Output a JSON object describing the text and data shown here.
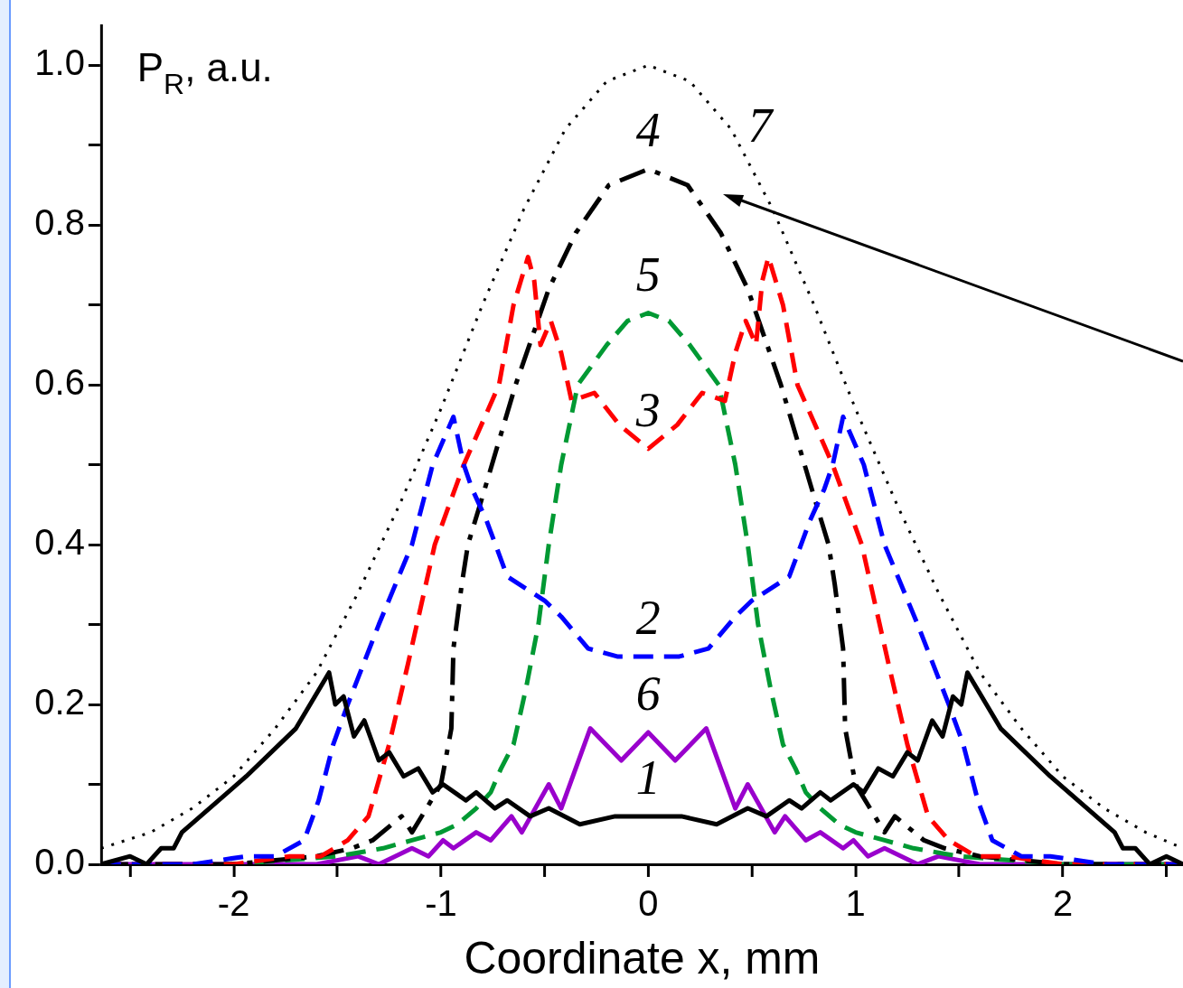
{
  "chart_data": {
    "type": "line",
    "xlabel": "Coordinate x, mm",
    "ylabel": "P$_{R}$, a.u.",
    "marker": "none",
    "xlim": [
      -2.64,
      2.58
    ],
    "ylim": [
      0,
      1.05
    ],
    "xticks": [
      {
        "value": -2.5,
        "label": null
      },
      -2,
      {
        "value": -1.5,
        "label": null
      },
      -1,
      {
        "value": -0.5,
        "label": null
      },
      0,
      {
        "value": 0.5,
        "label": null
      },
      1,
      {
        "value": 1.5,
        "label": null
      },
      2,
      {
        "value": 2.5,
        "label": null
      }
    ],
    "yticks": [
      {
        "value": 0,
        "label": "0.0"
      },
      {
        "value": 0.1,
        "label": null
      },
      0.2,
      {
        "value": 0.3,
        "label": null
      },
      0.4,
      {
        "value": 0.5,
        "label": null
      },
      0.6,
      {
        "value": 0.7,
        "label": null
      },
      0.8,
      {
        "value": 0.9,
        "label": null
      },
      {
        "value": 1,
        "label": "1.0"
      }
    ],
    "series": [
      {
        "name": "1",
        "color": "#000000",
        "line_style": "solid",
        "x": [
          -2.64,
          -2.5,
          -2.42,
          -2.35,
          -2.29,
          -2.25,
          -1.94,
          -1.7,
          -1.54,
          -1.51,
          -1.47,
          -1.42,
          -1.37,
          -1.3,
          -1.25,
          -1.18,
          -1.11,
          -1.04,
          -0.99,
          -0.88,
          -0.83,
          -0.74,
          -0.68,
          -0.57,
          -0.48,
          -0.33,
          -0.16,
          0,
          0.16,
          0.33,
          0.48,
          0.57,
          0.68,
          0.74,
          0.83,
          0.88,
          0.99,
          1.04,
          1.11,
          1.18,
          1.25,
          1.3,
          1.37,
          1.42,
          1.47,
          1.51,
          1.54,
          1.7,
          1.94,
          2.25,
          2.29,
          2.35,
          2.42,
          2.5,
          2.58
        ],
        "values": [
          0,
          0.01,
          0,
          0.02,
          0.02,
          0.04,
          0.11,
          0.17,
          0.24,
          0.2,
          0.21,
          0.16,
          0.18,
          0.13,
          0.14,
          0.11,
          0.12,
          0.09,
          0.1,
          0.08,
          0.09,
          0.07,
          0.08,
          0.06,
          0.07,
          0.05,
          0.06,
          0.06,
          0.06,
          0.05,
          0.07,
          0.06,
          0.08,
          0.07,
          0.09,
          0.08,
          0.1,
          0.09,
          0.12,
          0.11,
          0.14,
          0.13,
          0.18,
          0.16,
          0.21,
          0.2,
          0.24,
          0.17,
          0.11,
          0.04,
          0.02,
          0.02,
          0,
          0.01,
          0
        ]
      },
      {
        "name": "2",
        "color": "#0000ff",
        "line_style": "dashed",
        "x": [
          -2.64,
          -2.2,
          -1.94,
          -1.8,
          -1.66,
          -1.59,
          -1.52,
          -1.45,
          -1.3,
          -1.14,
          -1.04,
          -0.94,
          -0.89,
          -0.85,
          -0.78,
          -0.68,
          -0.5,
          -0.42,
          -0.29,
          -0.15,
          0,
          0.15,
          0.29,
          0.42,
          0.5,
          0.68,
          0.78,
          0.85,
          0.89,
          0.94,
          1.04,
          1.14,
          1.3,
          1.45,
          1.52,
          1.59,
          1.66,
          1.8,
          1.94,
          2.2,
          2.58
        ],
        "values": [
          0,
          0,
          0.01,
          0.01,
          0.03,
          0.08,
          0.15,
          0.2,
          0.3,
          0.4,
          0.5,
          0.56,
          0.5,
          0.47,
          0.43,
          0.36,
          0.33,
          0.31,
          0.27,
          0.26,
          0.26,
          0.26,
          0.27,
          0.31,
          0.33,
          0.36,
          0.43,
          0.47,
          0.5,
          0.56,
          0.5,
          0.4,
          0.3,
          0.2,
          0.15,
          0.08,
          0.03,
          0.01,
          0.01,
          0,
          0
        ]
      },
      {
        "name": "3",
        "color": "#ff0000",
        "line_style": "dashed",
        "x": [
          -2.64,
          -2.0,
          -1.73,
          -1.58,
          -1.45,
          -1.35,
          -1.25,
          -1.16,
          -1.03,
          -0.89,
          -0.72,
          -0.65,
          -0.58,
          -0.55,
          -0.52,
          -0.47,
          -0.42,
          -0.37,
          -0.26,
          -0.14,
          0,
          0.14,
          0.26,
          0.37,
          0.42,
          0.47,
          0.52,
          0.55,
          0.58,
          0.65,
          0.72,
          0.89,
          1.03,
          1.16,
          1.25,
          1.35,
          1.45,
          1.58,
          1.73,
          2.0,
          2.58
        ],
        "values": [
          0,
          0,
          0.01,
          0.01,
          0.03,
          0.06,
          0.15,
          0.25,
          0.4,
          0.5,
          0.6,
          0.7,
          0.76,
          0.73,
          0.65,
          0.68,
          0.64,
          0.58,
          0.59,
          0.55,
          0.52,
          0.55,
          0.59,
          0.58,
          0.64,
          0.68,
          0.65,
          0.73,
          0.76,
          0.7,
          0.6,
          0.5,
          0.4,
          0.25,
          0.15,
          0.06,
          0.03,
          0.01,
          0.01,
          0,
          0
        ]
      },
      {
        "name": "4",
        "color": "#000000",
        "line_style": "dashdot",
        "x": [
          -2.64,
          -2.0,
          -1.6,
          -1.43,
          -1.33,
          -1.19,
          -1.14,
          -1.0,
          -0.95,
          -0.94,
          -0.9,
          -0.87,
          -0.8,
          -0.72,
          -0.64,
          -0.48,
          -0.35,
          -0.19,
          0,
          0.19,
          0.35,
          0.48,
          0.64,
          0.72,
          0.8,
          0.87,
          0.9,
          0.94,
          0.95,
          1.0,
          1.14,
          1.19,
          1.33,
          1.43,
          1.6,
          2.0,
          2.58
        ],
        "values": [
          0,
          0,
          0.01,
          0.02,
          0.03,
          0.06,
          0.04,
          0.1,
          0.17,
          0.27,
          0.35,
          0.4,
          0.46,
          0.53,
          0.6,
          0.72,
          0.79,
          0.85,
          0.87,
          0.85,
          0.79,
          0.72,
          0.6,
          0.53,
          0.46,
          0.4,
          0.35,
          0.27,
          0.17,
          0.1,
          0.04,
          0.06,
          0.03,
          0.02,
          0.01,
          0,
          0
        ]
      },
      {
        "name": "5",
        "color": "#009933",
        "line_style": "dashed",
        "x": [
          -2.64,
          -2.0,
          -1.5,
          -1.28,
          -1.14,
          -1.0,
          -0.92,
          -0.83,
          -0.76,
          -0.71,
          -0.65,
          -0.59,
          -0.53,
          -0.48,
          -0.42,
          -0.34,
          -0.2,
          -0.1,
          0,
          0.1,
          0.2,
          0.34,
          0.42,
          0.48,
          0.53,
          0.59,
          0.65,
          0.71,
          0.76,
          0.83,
          0.92,
          1.0,
          1.14,
          1.28,
          1.5,
          2.0,
          2.58
        ],
        "values": [
          0,
          0,
          0.01,
          0.02,
          0.03,
          0.04,
          0.05,
          0.07,
          0.09,
          0.12,
          0.15,
          0.22,
          0.3,
          0.4,
          0.5,
          0.6,
          0.65,
          0.68,
          0.69,
          0.68,
          0.65,
          0.6,
          0.5,
          0.4,
          0.3,
          0.22,
          0.15,
          0.12,
          0.09,
          0.07,
          0.05,
          0.04,
          0.03,
          0.02,
          0.01,
          0,
          0
        ]
      },
      {
        "name": "6",
        "color": "#9900cc",
        "line_style": "solid",
        "x": [
          -2.64,
          -2.0,
          -1.6,
          -1.4,
          -1.3,
          -1.14,
          -1.06,
          -0.99,
          -0.94,
          -0.83,
          -0.76,
          -0.66,
          -0.61,
          -0.48,
          -0.42,
          -0.28,
          -0.13,
          0,
          0.13,
          0.28,
          0.42,
          0.48,
          0.61,
          0.66,
          0.76,
          0.83,
          0.94,
          0.99,
          1.06,
          1.14,
          1.3,
          1.4,
          1.6,
          2.0,
          2.58
        ],
        "values": [
          0,
          0,
          0,
          0.01,
          0,
          0.02,
          0.01,
          0.03,
          0.02,
          0.04,
          0.03,
          0.06,
          0.04,
          0.1,
          0.07,
          0.17,
          0.13,
          0.165,
          0.13,
          0.17,
          0.07,
          0.1,
          0.04,
          0.06,
          0.03,
          0.04,
          0.02,
          0.03,
          0.01,
          0.02,
          0,
          0.01,
          0,
          0,
          0
        ]
      },
      {
        "name": "7",
        "color": "#000000",
        "line_style": "dotted",
        "x": [
          -2.64,
          -2.4,
          -2.2,
          -2.0,
          -1.8,
          -1.6,
          -1.4,
          -1.2,
          -1.0,
          -0.8,
          -0.6,
          -0.4,
          -0.2,
          0,
          0.2,
          0.4,
          0.6,
          0.8,
          1.0,
          1.2,
          1.4,
          1.6,
          1.8,
          2.0,
          2.2,
          2.4,
          2.58
        ],
        "values": [
          0.02,
          0.04,
          0.07,
          0.11,
          0.17,
          0.24,
          0.34,
          0.45,
          0.57,
          0.7,
          0.82,
          0.92,
          0.98,
          1.0,
          0.98,
          0.92,
          0.82,
          0.7,
          0.57,
          0.45,
          0.34,
          0.24,
          0.17,
          0.11,
          0.07,
          0.04,
          0.02
        ]
      }
    ]
  }
}
